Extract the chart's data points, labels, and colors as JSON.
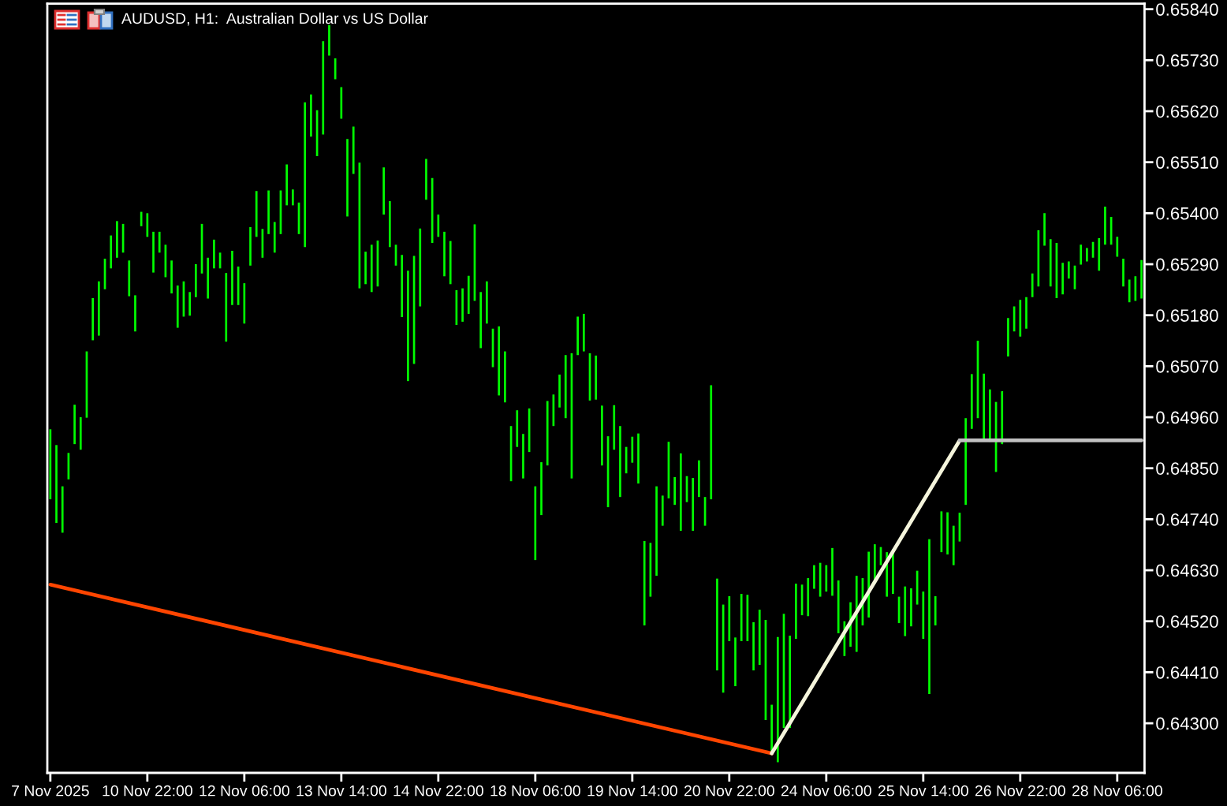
{
  "chart_data": {
    "type": "bar",
    "title": "AUDUSD, H1:  Australian Dollar vs US Dollar",
    "categories": [
      "7 Nov 2025",
      null,
      null,
      null,
      null,
      null,
      null,
      null,
      null,
      null,
      null,
      null,
      null,
      null,
      null,
      null,
      "10 Nov 22:00",
      null,
      null,
      null,
      null,
      null,
      null,
      null,
      null,
      null,
      null,
      null,
      null,
      null,
      null,
      null,
      "12 Nov 06:00",
      null,
      null,
      null,
      null,
      null,
      null,
      null,
      null,
      null,
      null,
      null,
      null,
      null,
      null,
      null,
      "13 Nov 14:00",
      null,
      null,
      null,
      null,
      null,
      null,
      null,
      null,
      null,
      null,
      null,
      null,
      null,
      null,
      null,
      "14 Nov 22:00",
      null,
      null,
      null,
      null,
      null,
      null,
      null,
      null,
      null,
      null,
      null,
      null,
      null,
      null,
      null,
      "18 Nov 06:00",
      null,
      null,
      null,
      null,
      null,
      null,
      null,
      null,
      null,
      null,
      null,
      null,
      null,
      null,
      null,
      "19 Nov 14:00",
      null,
      null,
      null,
      null,
      null,
      null,
      null,
      null,
      null,
      null,
      null,
      null,
      null,
      null,
      null,
      "20 Nov 22:00",
      null,
      null,
      null,
      null,
      null,
      null,
      null,
      null,
      null,
      null,
      null,
      null,
      null,
      null,
      null,
      "24 Nov 06:00",
      null,
      null,
      null,
      null,
      null,
      null,
      null,
      null,
      null,
      null,
      null,
      null,
      null,
      null,
      null,
      "25 Nov 14:00",
      null,
      null,
      null,
      null,
      null,
      null,
      null,
      null,
      null,
      null,
      null,
      null,
      null,
      null,
      null,
      "26 Nov 22:00",
      null,
      null,
      null,
      null,
      null,
      null,
      null,
      null,
      null,
      null,
      null,
      null,
      null,
      null,
      null,
      "28 Nov 06:00",
      null,
      null,
      null,
      null
    ],
    "ylim": [
      0.64193,
      0.65852
    ],
    "yticks": [
      {
        "value": 0.6584,
        "label": "0.65840"
      },
      {
        "value": 0.6573,
        "label": "0.65730"
      },
      {
        "value": 0.6562,
        "label": "0.65620"
      },
      {
        "value": 0.6551,
        "label": "0.65510"
      },
      {
        "value": 0.654,
        "label": "0.65400"
      },
      {
        "value": 0.6529,
        "label": "0.65290"
      },
      {
        "value": 0.6518,
        "label": "0.65180"
      },
      {
        "value": 0.6507,
        "label": "0.65070"
      },
      {
        "value": 0.6496,
        "label": "0.64960"
      },
      {
        "value": 0.6485,
        "label": "0.64850"
      },
      {
        "value": 0.6474,
        "label": "0.64740"
      },
      {
        "value": 0.6463,
        "label": "0.64630"
      },
      {
        "value": 0.6452,
        "label": "0.64520"
      },
      {
        "value": 0.6441,
        "label": "0.64410"
      },
      {
        "value": 0.643,
        "label": "0.64300"
      }
    ],
    "series": [
      {
        "color": "#00ff00",
        "base": [
          0.64783,
          0.64732,
          0.64711,
          0.64826,
          0.64902,
          0.6489,
          0.64959,
          0.65126,
          0.65136,
          0.65236,
          0.65281,
          0.65304,
          0.65315,
          0.65221,
          0.65145,
          0.65372,
          0.65349,
          0.65272,
          0.65315,
          0.65262,
          0.65227,
          0.65153,
          0.65177,
          0.65179,
          0.65219,
          0.6527,
          0.65216,
          0.65281,
          0.65281,
          0.65123,
          0.65202,
          0.65202,
          0.65162,
          0.65287,
          0.65349,
          0.65304,
          0.65355,
          0.65315,
          0.65355,
          0.65417,
          0.65417,
          0.65355,
          0.65327,
          0.65565,
          0.65523,
          0.6557,
          0.6574,
          0.65689,
          0.65604,
          0.65393,
          0.65485,
          0.65238,
          0.65247,
          0.6523,
          0.65242,
          0.65397,
          0.65327,
          0.65287,
          0.65176,
          0.65038,
          0.65075,
          0.65199,
          0.65429,
          0.65336,
          0.65349,
          0.65264,
          0.65247,
          0.65159,
          0.65166,
          0.65183,
          0.65211,
          0.65109,
          0.65162,
          0.65068,
          0.65007,
          0.64992,
          0.64822,
          0.64896,
          0.64828,
          0.64885,
          0.64652,
          0.64749,
          0.64856,
          0.64941,
          0.64981,
          0.64958,
          0.64828,
          0.65094,
          0.65102,
          0.64996,
          0.64998,
          0.64856,
          0.64766,
          0.6489,
          0.64788,
          0.64839,
          0.64862,
          0.64817,
          0.64511,
          0.64573,
          0.64618,
          0.64726,
          0.64785,
          0.64771,
          0.64715,
          0.64777,
          0.64715,
          0.64788,
          0.64726,
          0.64783,
          0.64414,
          0.64366,
          0.64477,
          0.6438,
          0.64477,
          0.64477,
          0.64414,
          0.64426,
          0.64307,
          0.64233,
          0.64216,
          0.6429,
          0.6429,
          0.64482,
          0.64533,
          0.64531,
          0.6459,
          0.64573,
          0.64584,
          0.64575,
          0.64494,
          0.64445,
          0.64465,
          0.64454,
          0.64511,
          0.64528,
          0.64601,
          0.64641,
          0.64573,
          0.64579,
          0.64516,
          0.64488,
          0.64509,
          0.64556,
          0.64482,
          0.64363,
          0.64511,
          0.64669,
          0.64664,
          0.64641,
          0.64692,
          0.64771,
          0.64935,
          0.64958,
          0.64914,
          0.64907,
          0.64842,
          0.64902,
          0.65091,
          0.65145,
          0.65134,
          0.65151,
          0.65219,
          0.65242,
          0.6533,
          0.65242,
          0.65217,
          0.65225,
          0.65259,
          0.65236,
          0.65289,
          0.65296,
          0.65304,
          0.65276,
          0.65332,
          0.65332,
          0.65306,
          0.65242,
          0.65208,
          0.65211,
          0.65216
        ],
        "values": [
          0.00151,
          0.00168,
          0.001,
          0.00057,
          0.00085,
          0.0007,
          0.00143,
          0.00091,
          0.00117,
          0.00066,
          0.00071,
          0.00079,
          0.00062,
          0.00077,
          0.00078,
          0.00031,
          0.00051,
          0.00088,
          0.00045,
          0.0007,
          0.00071,
          0.00091,
          0.00076,
          0.00051,
          0.00071,
          0.00107,
          0.00088,
          0.00062,
          0.00034,
          0.00148,
          0.00117,
          0.00083,
          0.00087,
          0.00083,
          0.00099,
          0.00062,
          0.00094,
          0.00066,
          0.00094,
          0.00088,
          0.00034,
          0.00068,
          0.00312,
          0.00091,
          0.00099,
          0.00201,
          0.00066,
          0.00045,
          0.00068,
          0.00167,
          0.00102,
          0.00271,
          0.0007,
          0.00102,
          0.00099,
          0.00102,
          0.00099,
          0.00045,
          0.00134,
          0.00238,
          0.00233,
          0.00168,
          0.00088,
          0.0014,
          0.00048,
          0.00096,
          0.00093,
          0.00075,
          0.00072,
          0.00082,
          0.00165,
          0.00121,
          0.00091,
          0.00083,
          0.00149,
          0.0011,
          0.00119,
          0.00079,
          0.00096,
          0.00094,
          0.00159,
          0.00114,
          0.00139,
          0.00068,
          0.00071,
          0.00136,
          0.0027,
          0.00083,
          0.00081,
          0.00102,
          0.00095,
          0.00129,
          0.00153,
          0.00096,
          0.00153,
          0.00057,
          0.00056,
          0.00108,
          0.00182,
          0.00116,
          0.00193,
          0.00065,
          0.00122,
          0.0006,
          0.00167,
          0.00056,
          0.00114,
          0.00079,
          0.00062,
          0.00246,
          0.00198,
          0.0019,
          0.00097,
          0.00105,
          0.00102,
          0.001,
          0.00104,
          0.00119,
          0.00216,
          0.00107,
          0.0027,
          0.00246,
          0.00199,
          0.00119,
          0.00066,
          0.00082,
          0.00051,
          0.00073,
          0.00057,
          0.00103,
          0.00114,
          0.00075,
          0.00096,
          0.00164,
          0.00102,
          0.00142,
          0.00085,
          0.00039,
          0.00096,
          0.00097,
          0.00057,
          0.00107,
          0.00082,
          0.00073,
          0.00102,
          0.00334,
          0.00063,
          0.00088,
          0.00091,
          0.00085,
          0.00062,
          0.00187,
          0.00118,
          0.00167,
          0.0014,
          0.00113,
          0.00151,
          0.00114,
          0.00083,
          0.00054,
          0.00079,
          0.00068,
          0.00051,
          0.00121,
          0.0007,
          0.00102,
          0.00119,
          0.00068,
          0.00037,
          0.00051,
          0.00043,
          0.00029,
          0.00034,
          0.0007,
          0.00082,
          0.0006,
          0.00043,
          0.0006,
          0.00049,
          0.00053,
          0.00083
        ]
      },
      {
        "type": "line",
        "color": "#ff4500",
        "values": [
          0.64599,
          null,
          null,
          null,
          null,
          null,
          null,
          null,
          null,
          null,
          null,
          null,
          null,
          null,
          null,
          null,
          null,
          null,
          null,
          null,
          null,
          null,
          null,
          null,
          null,
          null,
          null,
          null,
          null,
          null,
          null,
          null,
          null,
          null,
          null,
          null,
          null,
          null,
          null,
          null,
          null,
          null,
          null,
          null,
          null,
          null,
          null,
          null,
          null,
          null,
          null,
          null,
          null,
          null,
          null,
          null,
          null,
          null,
          null,
          null,
          null,
          null,
          null,
          null,
          null,
          null,
          null,
          null,
          null,
          null,
          null,
          null,
          null,
          null,
          null,
          null,
          null,
          null,
          null,
          null,
          null,
          null,
          null,
          null,
          null,
          null,
          null,
          null,
          null,
          null,
          null,
          null,
          null,
          null,
          null,
          null,
          null,
          null,
          null,
          null,
          null,
          null,
          null,
          null,
          null,
          null,
          null,
          null,
          null,
          null,
          null,
          null,
          null,
          null,
          null,
          null,
          null,
          null,
          null,
          0.64235,
          null,
          null,
          null,
          null,
          null,
          null,
          null,
          null,
          null,
          null,
          null,
          null,
          null,
          null,
          null,
          null,
          null,
          null,
          null,
          null,
          null,
          null,
          null,
          null,
          null,
          null,
          null,
          null,
          null,
          null,
          null,
          null,
          null,
          null,
          null,
          null,
          null,
          null,
          null,
          null,
          null,
          null,
          null,
          null,
          null,
          null,
          null,
          null,
          null,
          null,
          null,
          null,
          null,
          null,
          null,
          null,
          null,
          null,
          null,
          null,
          null
        ]
      },
      {
        "type": "line",
        "color": "#f5f5dc",
        "values": [
          null,
          null,
          null,
          null,
          null,
          null,
          null,
          null,
          null,
          null,
          null,
          null,
          null,
          null,
          null,
          null,
          null,
          null,
          null,
          null,
          null,
          null,
          null,
          null,
          null,
          null,
          null,
          null,
          null,
          null,
          null,
          null,
          null,
          null,
          null,
          null,
          null,
          null,
          null,
          null,
          null,
          null,
          null,
          null,
          null,
          null,
          null,
          null,
          null,
          null,
          null,
          null,
          null,
          null,
          null,
          null,
          null,
          null,
          null,
          null,
          null,
          null,
          null,
          null,
          null,
          null,
          null,
          null,
          null,
          null,
          null,
          null,
          null,
          null,
          null,
          null,
          null,
          null,
          null,
          null,
          null,
          null,
          null,
          null,
          null,
          null,
          null,
          null,
          null,
          null,
          null,
          null,
          null,
          null,
          null,
          null,
          null,
          null,
          null,
          null,
          null,
          null,
          null,
          null,
          null,
          null,
          null,
          null,
          null,
          null,
          null,
          null,
          null,
          null,
          null,
          null,
          null,
          null,
          null,
          0.64235,
          null,
          null,
          null,
          null,
          null,
          null,
          null,
          null,
          null,
          null,
          null,
          null,
          null,
          null,
          null,
          null,
          null,
          null,
          null,
          null,
          null,
          null,
          null,
          null,
          null,
          null,
          null,
          null,
          null,
          null,
          0.6491,
          null,
          null,
          null,
          null,
          null,
          null,
          null,
          null,
          null,
          null,
          null,
          null,
          null,
          null,
          null,
          null,
          null,
          null,
          null,
          null,
          null,
          null,
          null,
          null,
          null,
          null,
          null,
          null,
          null,
          null
        ]
      },
      {
        "type": "line",
        "color": "#c0c0c0",
        "values": [
          null,
          null,
          null,
          null,
          null,
          null,
          null,
          null,
          null,
          null,
          null,
          null,
          null,
          null,
          null,
          null,
          null,
          null,
          null,
          null,
          null,
          null,
          null,
          null,
          null,
          null,
          null,
          null,
          null,
          null,
          null,
          null,
          null,
          null,
          null,
          null,
          null,
          null,
          null,
          null,
          null,
          null,
          null,
          null,
          null,
          null,
          null,
          null,
          null,
          null,
          null,
          null,
          null,
          null,
          null,
          null,
          null,
          null,
          null,
          null,
          null,
          null,
          null,
          null,
          null,
          null,
          null,
          null,
          null,
          null,
          null,
          null,
          null,
          null,
          null,
          null,
          null,
          null,
          null,
          null,
          null,
          null,
          null,
          null,
          null,
          null,
          null,
          null,
          null,
          null,
          null,
          null,
          null,
          null,
          null,
          null,
          null,
          null,
          null,
          null,
          null,
          null,
          null,
          null,
          null,
          null,
          null,
          null,
          null,
          null,
          null,
          null,
          null,
          null,
          null,
          null,
          null,
          null,
          null,
          null,
          null,
          null,
          null,
          null,
          null,
          null,
          null,
          null,
          null,
          null,
          null,
          null,
          null,
          null,
          null,
          null,
          null,
          null,
          null,
          null,
          null,
          null,
          null,
          null,
          null,
          null,
          null,
          null,
          null,
          null,
          0.6491,
          null,
          null,
          null,
          null,
          null,
          null,
          null,
          null,
          null,
          null,
          null,
          null,
          null,
          null,
          null,
          null,
          null,
          null,
          null,
          null,
          null,
          null,
          null,
          null,
          null,
          null,
          null,
          null,
          null,
          0.6491
        ]
      }
    ]
  }
}
